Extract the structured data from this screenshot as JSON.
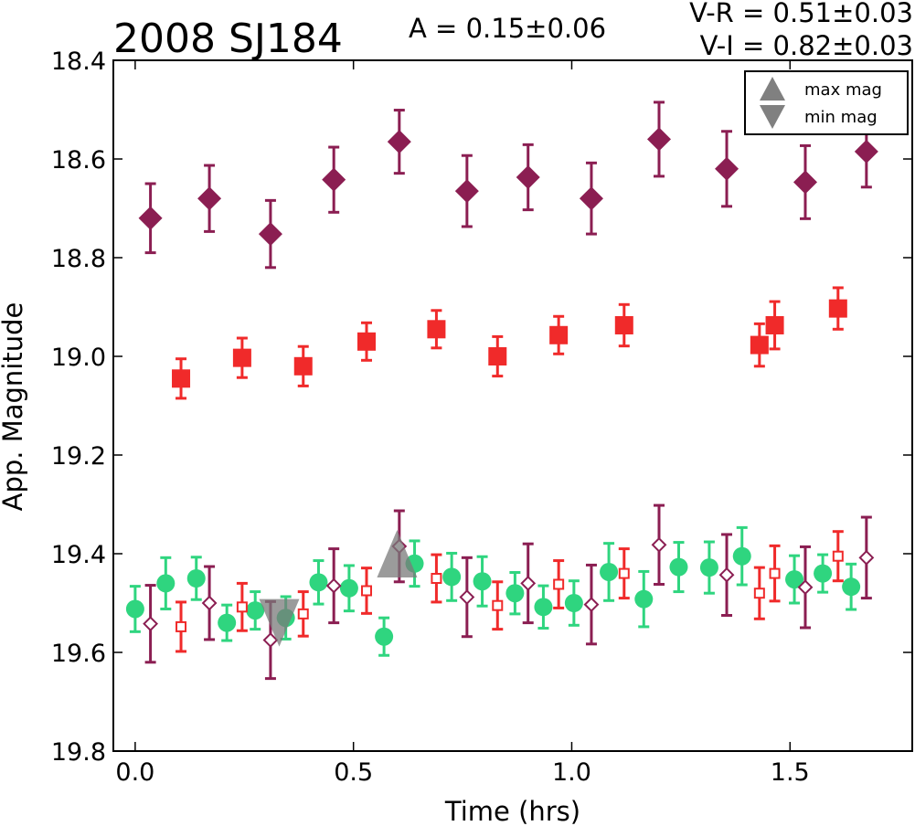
{
  "chart_data": {
    "type": "scatter",
    "title": "2008 SJ184",
    "amplitude_text": "A  = 0.15±0.06",
    "color_text_1": "V-R = 0.51±0.03",
    "color_text_2": "V-I  = 0.82±0.03",
    "xlabel": "Time (hrs)",
    "ylabel": "App. Magnitude",
    "xlim": [
      -0.05,
      1.78
    ],
    "ylim": [
      19.8,
      18.4
    ],
    "y_inverted": true,
    "grid": false,
    "xticks": [
      0.0,
      0.5,
      1.0,
      1.5
    ],
    "xtick_labels": [
      "0.0",
      "0.5",
      "1.0",
      "1.5"
    ],
    "yticks": [
      18.4,
      18.6,
      18.8,
      19.0,
      19.2,
      19.4,
      19.6,
      19.8
    ],
    "ytick_labels": [
      "18.4",
      "18.6",
      "18.8",
      "19.0",
      "19.2",
      "19.4",
      "19.6",
      "19.8"
    ],
    "legend": {
      "placement": "top-right",
      "entries": [
        {
          "label": "max mag",
          "marker": "triangle-up",
          "color": "#808080"
        },
        {
          "label": "min mag",
          "marker": "triangle-down",
          "color": "#808080"
        }
      ]
    },
    "colors": {
      "diamond": "#8b1e52",
      "square": "#f02a2a",
      "circle": "#2fd57f",
      "extrema": "#7a7a7a"
    },
    "series": [
      {
        "marker": "diamond-filled",
        "color": "#8b1e52",
        "points": [
          [
            0.035,
            18.72,
            0.07
          ],
          [
            0.17,
            18.68,
            0.067
          ],
          [
            0.31,
            18.752,
            0.068
          ],
          [
            0.455,
            18.642,
            0.066
          ],
          [
            0.605,
            18.565,
            0.064
          ],
          [
            0.76,
            18.665,
            0.072
          ],
          [
            0.9,
            18.637,
            0.066
          ],
          [
            1.045,
            18.68,
            0.072
          ],
          [
            1.2,
            18.56,
            0.075
          ],
          [
            1.355,
            18.62,
            0.076
          ],
          [
            1.535,
            18.647,
            0.074
          ],
          [
            1.675,
            18.585,
            0.072
          ]
        ]
      },
      {
        "marker": "square-filled",
        "color": "#f02a2a",
        "points": [
          [
            0.105,
            19.045,
            0.04
          ],
          [
            0.245,
            19.003,
            0.04
          ],
          [
            0.385,
            19.02,
            0.04
          ],
          [
            0.53,
            18.97,
            0.038
          ],
          [
            0.69,
            18.945,
            0.038
          ],
          [
            0.83,
            19.0,
            0.04
          ],
          [
            0.97,
            18.957,
            0.038
          ],
          [
            1.12,
            18.937,
            0.042
          ],
          [
            1.43,
            18.977,
            0.043
          ],
          [
            1.465,
            18.937,
            0.048
          ],
          [
            1.61,
            18.903,
            0.042
          ]
        ]
      },
      {
        "marker": "circle-filled",
        "color": "#2fd57f",
        "points": [
          [
            0.0,
            19.512,
            0.046
          ],
          [
            0.07,
            19.46,
            0.052
          ],
          [
            0.14,
            19.45,
            0.043
          ],
          [
            0.21,
            19.54,
            0.036
          ],
          [
            0.275,
            19.515,
            0.038
          ],
          [
            0.345,
            19.53,
            0.043
          ],
          [
            0.42,
            19.458,
            0.044
          ],
          [
            0.49,
            19.47,
            0.046
          ],
          [
            0.57,
            19.568,
            0.038
          ],
          [
            0.64,
            19.42,
            0.046
          ],
          [
            0.725,
            19.447,
            0.048
          ],
          [
            0.795,
            19.456,
            0.05
          ],
          [
            0.87,
            19.48,
            0.042
          ],
          [
            0.935,
            19.508,
            0.043
          ],
          [
            1.005,
            19.5,
            0.045
          ],
          [
            1.085,
            19.437,
            0.058
          ],
          [
            1.165,
            19.492,
            0.056
          ],
          [
            1.245,
            19.427,
            0.05
          ],
          [
            1.315,
            19.428,
            0.052
          ],
          [
            1.39,
            19.405,
            0.058
          ],
          [
            1.51,
            19.452,
            0.048
          ],
          [
            1.575,
            19.44,
            0.038
          ],
          [
            1.64,
            19.467,
            0.046
          ]
        ]
      },
      {
        "marker": "diamond-open",
        "color": "#8b1e52",
        "points": [
          [
            0.035,
            19.542,
            0.078
          ],
          [
            0.17,
            19.5,
            0.074
          ],
          [
            0.31,
            19.575,
            0.078
          ],
          [
            0.455,
            19.465,
            0.075
          ],
          [
            0.605,
            19.385,
            0.072
          ],
          [
            0.76,
            19.488,
            0.08
          ],
          [
            0.9,
            19.46,
            0.08
          ],
          [
            1.045,
            19.503,
            0.08
          ],
          [
            1.2,
            19.382,
            0.08
          ],
          [
            1.355,
            19.443,
            0.082
          ],
          [
            1.535,
            19.468,
            0.082
          ],
          [
            1.675,
            19.408,
            0.082
          ]
        ]
      },
      {
        "marker": "square-open",
        "color": "#f02a2a",
        "points": [
          [
            0.105,
            19.548,
            0.05
          ],
          [
            0.245,
            19.508,
            0.048
          ],
          [
            0.385,
            19.522,
            0.045
          ],
          [
            0.53,
            19.475,
            0.046
          ],
          [
            0.69,
            19.45,
            0.048
          ],
          [
            0.83,
            19.505,
            0.048
          ],
          [
            0.97,
            19.462,
            0.048
          ],
          [
            1.12,
            19.44,
            0.05
          ],
          [
            1.43,
            19.48,
            0.052
          ],
          [
            1.465,
            19.44,
            0.056
          ],
          [
            1.61,
            19.405,
            0.05
          ]
        ]
      }
    ],
    "extrema": [
      {
        "type": "max",
        "x": 0.6,
        "y": 19.4
      },
      {
        "type": "min",
        "x": 0.33,
        "y": 19.54
      }
    ]
  }
}
